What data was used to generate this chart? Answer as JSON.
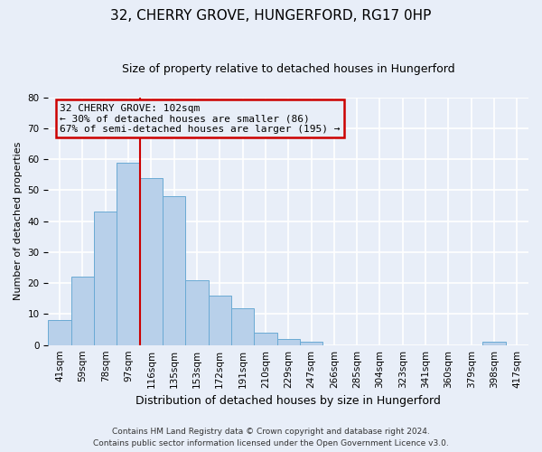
{
  "title": "32, CHERRY GROVE, HUNGERFORD, RG17 0HP",
  "subtitle": "Size of property relative to detached houses in Hungerford",
  "xlabel": "Distribution of detached houses by size in Hungerford",
  "ylabel": "Number of detached properties",
  "footnote1": "Contains HM Land Registry data © Crown copyright and database right 2024.",
  "footnote2": "Contains public sector information licensed under the Open Government Licence v3.0.",
  "bin_labels": [
    "41sqm",
    "59sqm",
    "78sqm",
    "97sqm",
    "116sqm",
    "135sqm",
    "153sqm",
    "172sqm",
    "191sqm",
    "210sqm",
    "229sqm",
    "247sqm",
    "266sqm",
    "285sqm",
    "304sqm",
    "323sqm",
    "341sqm",
    "360sqm",
    "379sqm",
    "398sqm",
    "417sqm"
  ],
  "bar_heights": [
    8,
    22,
    43,
    59,
    54,
    48,
    21,
    16,
    12,
    4,
    2,
    1,
    0,
    0,
    0,
    0,
    0,
    0,
    0,
    1,
    0
  ],
  "bar_color": "#b8d0ea",
  "bar_edge_color": "#6aaad4",
  "annotation_box_text": "32 CHERRY GROVE: 102sqm\n← 30% of detached houses are smaller (86)\n67% of semi-detached houses are larger (195) →",
  "annotation_box_color": "#cc0000",
  "vline_color": "#cc0000",
  "vline_x_index": 3,
  "ylim": [
    0,
    80
  ],
  "yticks": [
    0,
    10,
    20,
    30,
    40,
    50,
    60,
    70,
    80
  ],
  "background_color": "#e8eef8",
  "grid_color": "#ffffff",
  "title_fontsize": 11,
  "subtitle_fontsize": 9,
  "xlabel_fontsize": 9,
  "ylabel_fontsize": 8,
  "tick_fontsize": 7.5,
  "annotation_fontsize": 8,
  "footnote_fontsize": 6.5
}
